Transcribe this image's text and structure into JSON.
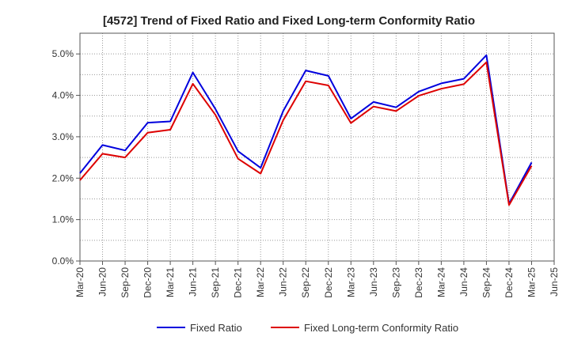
{
  "chart_data": {
    "type": "line",
    "title": "[4572]  Trend of Fixed Ratio and Fixed Long-term Conformity Ratio",
    "xlabel": "",
    "ylabel": "",
    "x": [
      "Mar-20",
      "Jun-20",
      "Sep-20",
      "Dec-20",
      "Mar-21",
      "Jun-21",
      "Sep-21",
      "Dec-21",
      "Mar-22",
      "Jun-22",
      "Sep-22",
      "Dec-22",
      "Mar-23",
      "Jun-23",
      "Sep-23",
      "Dec-23",
      "Mar-24",
      "Jun-24",
      "Sep-24",
      "Dec-24",
      "Mar-25"
    ],
    "x_ticks": [
      "Mar-20",
      "Jun-20",
      "Sep-20",
      "Dec-20",
      "Mar-21",
      "Jun-21",
      "Sep-21",
      "Dec-21",
      "Mar-22",
      "Jun-22",
      "Sep-22",
      "Dec-22",
      "Mar-23",
      "Jun-23",
      "Sep-23",
      "Dec-23",
      "Mar-24",
      "Jun-24",
      "Sep-24",
      "Dec-24",
      "Mar-25",
      "Jun-25"
    ],
    "y_ticks": [
      "0.0%",
      "1.0%",
      "2.0%",
      "3.0%",
      "4.0%",
      "5.0%"
    ],
    "y_tick_values": [
      0,
      1,
      2,
      3,
      4,
      5
    ],
    "ylim": [
      0,
      5.5
    ],
    "grid": true,
    "legend_position": "bottom",
    "series": [
      {
        "name": "Fixed Ratio",
        "color": "#0000dd",
        "values": [
          2.12,
          2.8,
          2.67,
          3.34,
          3.37,
          4.55,
          3.67,
          2.65,
          2.25,
          3.62,
          4.6,
          4.47,
          3.44,
          3.84,
          3.71,
          4.09,
          4.29,
          4.4,
          4.97,
          1.38,
          2.38
        ]
      },
      {
        "name": "Fixed Long-term Conformity Ratio",
        "color": "#dd0000",
        "values": [
          1.95,
          2.59,
          2.5,
          3.1,
          3.17,
          4.28,
          3.53,
          2.47,
          2.11,
          3.4,
          4.34,
          4.24,
          3.33,
          3.73,
          3.62,
          3.99,
          4.16,
          4.27,
          4.8,
          1.35,
          2.3
        ]
      }
    ]
  }
}
